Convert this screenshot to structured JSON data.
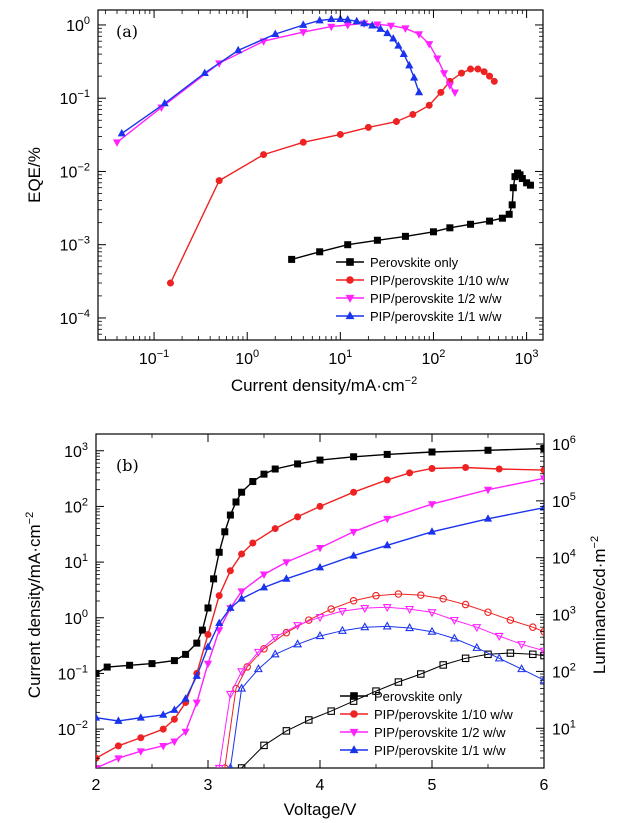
{
  "chart_data": [
    {
      "type": "line",
      "panel_label": "(a)",
      "xlabel": "Current density/mA·cm",
      "xlabel_exp": "−2",
      "ylabel": "EQE/%",
      "xscale": "log",
      "yscale": "log",
      "xlim": [
        0.025,
        1500
      ],
      "ylim": [
        5e-05,
        1.6
      ],
      "x_ticks": [
        {
          "v": 0.1,
          "base": "10",
          "exp": "−1"
        },
        {
          "v": 1,
          "base": "10",
          "exp": "0"
        },
        {
          "v": 10,
          "base": "10",
          "exp": "1"
        },
        {
          "v": 100,
          "base": "10",
          "exp": "2"
        },
        {
          "v": 1000,
          "base": "10",
          "exp": "3"
        }
      ],
      "y_ticks": [
        {
          "v": 0.0001,
          "base": "10",
          "exp": "−4"
        },
        {
          "v": 0.001,
          "base": "10",
          "exp": "−3"
        },
        {
          "v": 0.01,
          "base": "10",
          "exp": "−2"
        },
        {
          "v": 0.1,
          "base": "10",
          "exp": "−1"
        },
        {
          "v": 1,
          "base": "10",
          "exp": "0"
        }
      ],
      "legend_position": "bottom-right",
      "series": [
        {
          "name": "Perovskite only",
          "color": "#000000",
          "marker": "square",
          "x": [
            3,
            6,
            12,
            25,
            50,
            100,
            150,
            250,
            400,
            550,
            650,
            700,
            720,
            750,
            800,
            850,
            900,
            1000,
            1100
          ],
          "y": [
            0.00063,
            0.0008,
            0.001,
            0.00115,
            0.0013,
            0.0015,
            0.0017,
            0.0019,
            0.0021,
            0.0023,
            0.0026,
            0.0035,
            0.006,
            0.0085,
            0.0095,
            0.009,
            0.008,
            0.007,
            0.0065
          ]
        },
        {
          "name": "PIP/perovskite 1/10 w/w",
          "color": "#ee2222",
          "marker": "circle",
          "x": [
            0.15,
            0.5,
            1.5,
            4,
            10,
            20,
            40,
            60,
            90,
            120,
            150,
            200,
            250,
            300,
            350,
            400,
            450
          ],
          "y": [
            0.0003,
            0.0075,
            0.017,
            0.025,
            0.032,
            0.04,
            0.048,
            0.06,
            0.08,
            0.12,
            0.17,
            0.22,
            0.25,
            0.25,
            0.23,
            0.2,
            0.17
          ]
        },
        {
          "name": "PIP/perovskite 1/2 w/w",
          "color": "#ff22ff",
          "marker": "triangle-down",
          "x": [
            0.04,
            0.12,
            0.5,
            1.5,
            4,
            8,
            12,
            18,
            25,
            35,
            50,
            70,
            90,
            110,
            130,
            150,
            170
          ],
          "y": [
            0.025,
            0.075,
            0.3,
            0.6,
            0.8,
            0.95,
            1,
            1.05,
            1.02,
            0.98,
            0.9,
            0.75,
            0.55,
            0.35,
            0.22,
            0.15,
            0.12
          ]
        },
        {
          "name": "PIP/perovskite 1/1 w/w",
          "color": "#1a33ee",
          "marker": "triangle-up",
          "x": [
            0.045,
            0.13,
            0.35,
            0.8,
            2,
            4,
            6,
            8,
            10,
            12,
            15,
            18,
            22,
            27,
            32,
            37,
            42,
            48,
            55,
            62,
            70
          ],
          "y": [
            0.033,
            0.085,
            0.22,
            0.45,
            0.75,
            1,
            1.15,
            1.2,
            1.2,
            1.18,
            1.12,
            1.05,
            0.98,
            0.88,
            0.77,
            0.65,
            0.52,
            0.4,
            0.28,
            0.19,
            0.12
          ]
        }
      ]
    },
    {
      "type": "line",
      "panel_label": "(b)",
      "xlabel": "Voltage/V",
      "ylabel_left": "Current density/mA·cm",
      "ylabel_left_exp": "−2",
      "ylabel_right": "Luminance/cd·m",
      "ylabel_right_exp": "−2",
      "xscale": "linear",
      "yscale_left": "log",
      "yscale_right": "log",
      "xlim": [
        2,
        6
      ],
      "ylim_left": [
        0.002,
        2000
      ],
      "ylim_right": [
        2,
        1500000
      ],
      "x_ticks": [
        {
          "v": 2,
          "label": "2"
        },
        {
          "v": 3,
          "label": "3"
        },
        {
          "v": 4,
          "label": "4"
        },
        {
          "v": 5,
          "label": "5"
        },
        {
          "v": 6,
          "label": "6"
        }
      ],
      "y_ticks_left": [
        {
          "v": 0.01,
          "base": "10",
          "exp": "−2"
        },
        {
          "v": 0.1,
          "base": "10",
          "exp": "−1"
        },
        {
          "v": 1,
          "base": "10",
          "exp": "0"
        },
        {
          "v": 10,
          "base": "10",
          "exp": "1"
        },
        {
          "v": 100,
          "base": "10",
          "exp": "2"
        },
        {
          "v": 1000,
          "base": "10",
          "exp": "3"
        }
      ],
      "y_ticks_right": [
        {
          "v": 10,
          "base": "10",
          "exp": "1"
        },
        {
          "v": 100,
          "base": "10",
          "exp": "2"
        },
        {
          "v": 1000,
          "base": "10",
          "exp": "3"
        },
        {
          "v": 10000,
          "base": "10",
          "exp": "4"
        },
        {
          "v": 100000,
          "base": "10",
          "exp": "5"
        },
        {
          "v": 1000000,
          "base": "10",
          "exp": "6"
        }
      ],
      "legend_position": "bottom-right",
      "series": [
        {
          "name": "Perovskite only",
          "color": "#000000",
          "marker": "square",
          "axis": "left",
          "x": [
            2,
            2.1,
            2.3,
            2.5,
            2.7,
            2.8,
            2.9,
            2.95,
            3,
            3.05,
            3.1,
            3.15,
            3.2,
            3.25,
            3.3,
            3.4,
            3.5,
            3.6,
            3.8,
            4,
            4.3,
            4.6,
            5,
            5.5,
            6
          ],
          "y": [
            0.1,
            0.13,
            0.14,
            0.15,
            0.17,
            0.22,
            0.35,
            0.6,
            1.5,
            5,
            15,
            35,
            70,
            120,
            180,
            280,
            380,
            470,
            580,
            680,
            780,
            860,
            950,
            1020,
            1100
          ]
        },
        {
          "name": "PIP/perovskite 1/10 w/w",
          "color": "#ee2222",
          "marker": "circle",
          "axis": "left",
          "x": [
            2,
            2.2,
            2.4,
            2.6,
            2.7,
            2.8,
            2.9,
            3,
            3.1,
            3.2,
            3.3,
            3.4,
            3.6,
            3.8,
            4,
            4.3,
            4.6,
            4.8,
            5,
            5.3,
            5.6,
            6
          ],
          "y": [
            0.003,
            0.005,
            0.007,
            0.01,
            0.015,
            0.03,
            0.1,
            0.5,
            2.5,
            7,
            14,
            22,
            40,
            65,
            100,
            180,
            300,
            400,
            480,
            500,
            470,
            450
          ]
        },
        {
          "name": "PIP/perovskite 1/2 w/w",
          "color": "#ff22ff",
          "marker": "triangle-down",
          "axis": "left",
          "x": [
            2,
            2.2,
            2.4,
            2.6,
            2.7,
            2.8,
            2.9,
            3,
            3.1,
            3.2,
            3.3,
            3.5,
            3.7,
            4,
            4.3,
            4.6,
            5,
            5.5,
            6
          ],
          "y": [
            0.002,
            0.003,
            0.004,
            0.005,
            0.006,
            0.009,
            0.03,
            0.15,
            0.6,
            1.5,
            3,
            6,
            10,
            18,
            35,
            60,
            110,
            200,
            320
          ]
        },
        {
          "name": "PIP/perovskite 1/1 w/w",
          "color": "#1a33ee",
          "marker": "triangle-up",
          "axis": "left",
          "x": [
            2,
            2.2,
            2.4,
            2.6,
            2.7,
            2.8,
            2.9,
            3,
            3.1,
            3.2,
            3.3,
            3.5,
            3.7,
            4,
            4.3,
            4.6,
            5,
            5.5,
            6
          ],
          "y": [
            0.016,
            0.014,
            0.016,
            0.018,
            0.022,
            0.035,
            0.09,
            0.3,
            0.8,
            1.5,
            2.2,
            3.5,
            5,
            8,
            13,
            20,
            35,
            60,
            95
          ]
        },
        {
          "name": "Perovskite only",
          "color": "#000000",
          "marker": "square-open",
          "axis": "right",
          "x": [
            3.3,
            3.5,
            3.7,
            3.9,
            4.1,
            4.3,
            4.5,
            4.7,
            4.9,
            5.1,
            5.3,
            5.5,
            5.7,
            5.9,
            6
          ],
          "y": [
            2,
            5,
            9,
            14,
            20,
            30,
            45,
            65,
            90,
            130,
            170,
            200,
            210,
            200,
            190
          ]
        },
        {
          "name": "PIP/perovskite 1/10 w/w",
          "color": "#ee2222",
          "marker": "circle-open",
          "axis": "right",
          "x": [
            3.15,
            3.25,
            3.35,
            3.5,
            3.7,
            3.9,
            4.1,
            4.3,
            4.5,
            4.7,
            4.9,
            5.1,
            5.3,
            5.5,
            5.7,
            5.9,
            6
          ],
          "y": [
            2,
            50,
            120,
            250,
            480,
            800,
            1250,
            1750,
            2150,
            2300,
            2200,
            1900,
            1500,
            1100,
            800,
            600,
            500
          ]
        },
        {
          "name": "PIP/perovskite 1/2 w/w",
          "color": "#ff22ff",
          "marker": "triangle-down-open",
          "axis": "right",
          "x": [
            3.1,
            3.2,
            3.3,
            3.45,
            3.6,
            3.8,
            4,
            4.2,
            4.4,
            4.6,
            4.8,
            5,
            5.2,
            5.4,
            5.6,
            5.8,
            6
          ],
          "y": [
            2,
            40,
            100,
            220,
            400,
            650,
            900,
            1150,
            1300,
            1350,
            1250,
            1100,
            800,
            600,
            420,
            300,
            230
          ]
        },
        {
          "name": "PIP/perovskite 1/1 w/w",
          "color": "#1a33ee",
          "marker": "triangle-up-open",
          "axis": "right",
          "x": [
            3.2,
            3.3,
            3.45,
            3.6,
            3.8,
            4,
            4.2,
            4.4,
            4.6,
            4.8,
            5,
            5.2,
            5.4,
            5.6,
            5.8,
            6
          ],
          "y": [
            2,
            50,
            110,
            200,
            300,
            420,
            520,
            600,
            620,
            580,
            500,
            380,
            260,
            170,
            110,
            70
          ]
        }
      ]
    }
  ]
}
